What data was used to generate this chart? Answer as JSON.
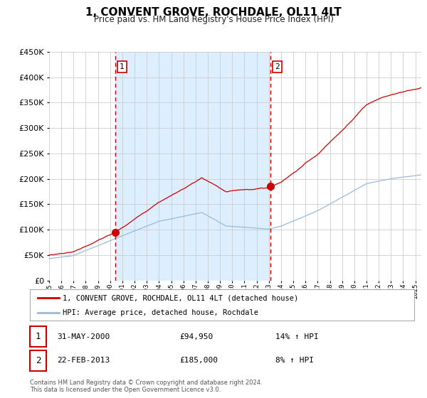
{
  "title": "1, CONVENT GROVE, ROCHDALE, OL11 4LT",
  "subtitle": "Price paid vs. HM Land Registry's House Price Index (HPI)",
  "ytick_values": [
    0,
    50000,
    100000,
    150000,
    200000,
    250000,
    300000,
    350000,
    400000,
    450000
  ],
  "sale1": {
    "date_num": 2000.42,
    "price": 94950,
    "label": "1",
    "date_str": "31-MAY-2000",
    "pct": "14%",
    "dir": "↑"
  },
  "sale2": {
    "date_num": 2013.14,
    "price": 185000,
    "label": "2",
    "date_str": "22-FEB-2013",
    "pct": "8%",
    "dir": "↑"
  },
  "xmin": 1995.0,
  "xmax": 2025.5,
  "ymin": 0,
  "ymax": 450000,
  "plot_bg": "#ffffff",
  "shade_bg": "#ddeeff",
  "grid_color": "#cccccc",
  "line_color_property": "#cc0000",
  "line_color_hpi": "#99bbdd",
  "legend_label_property": "1, CONVENT GROVE, ROCHDALE, OL11 4LT (detached house)",
  "legend_label_hpi": "HPI: Average price, detached house, Rochdale",
  "footer": "Contains HM Land Registry data © Crown copyright and database right 2024.\nThis data is licensed under the Open Government Licence v3.0.",
  "marker_color": "#cc0000",
  "vline_color": "#cc0000",
  "box_edge_color": "#cc0000"
}
